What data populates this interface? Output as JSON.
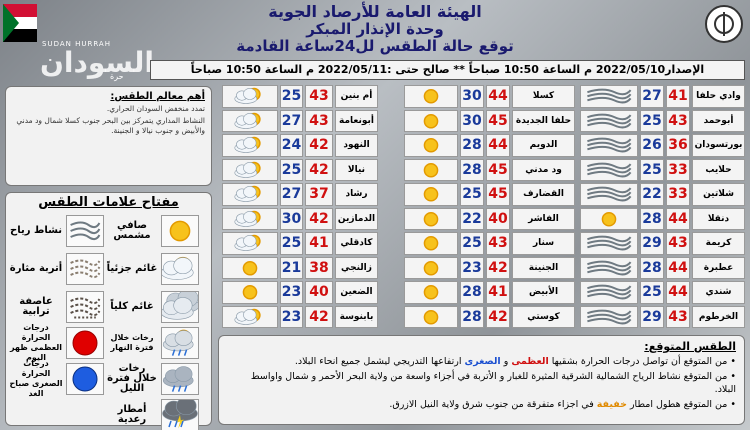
{
  "header": {
    "title": "الهيئة العامة للأرصاد الجوية",
    "subtitle": "وحدة الإنذار المبكر",
    "forecast_title": "توقع حالة الطقس لل24ساعة القادمة"
  },
  "watermark": {
    "latin": "SUDAN HURRAH",
    "arabic": "السودان",
    "small": "حرة"
  },
  "issue_line": "الإصدار2022/05/10 م الساعة 10:50 صباحاً ** صالح حتى :2022/05/11 م الساعة 10:50 صباحاً",
  "cities": {
    "columns": [
      [
        {
          "name": "وادي حلفا",
          "max": "41",
          "min": "27",
          "icon": "wind"
        },
        {
          "name": "أبوحمد",
          "max": "43",
          "min": "25",
          "icon": "wind"
        },
        {
          "name": "بورتسودان",
          "max": "36",
          "min": "26",
          "icon": "wind"
        },
        {
          "name": "حلايب",
          "max": "33",
          "min": "25",
          "icon": "wind"
        },
        {
          "name": "شلاتين",
          "max": "33",
          "min": "22",
          "icon": "wind"
        },
        {
          "name": "دنقلا",
          "max": "44",
          "min": "28",
          "icon": "sun"
        },
        {
          "name": "كريمة",
          "max": "43",
          "min": "29",
          "icon": "wind"
        },
        {
          "name": "عطبرة",
          "max": "44",
          "min": "28",
          "icon": "wind"
        },
        {
          "name": "شندي",
          "max": "44",
          "min": "25",
          "icon": "wind"
        },
        {
          "name": "الخرطوم",
          "max": "43",
          "min": "29",
          "icon": "wind"
        }
      ],
      [
        {
          "name": "كسلا",
          "max": "44",
          "min": "30",
          "icon": "sun"
        },
        {
          "name": "حلفا الجديدة",
          "max": "45",
          "min": "30",
          "icon": "sun"
        },
        {
          "name": "الدويم",
          "max": "44",
          "min": "28",
          "icon": "sun"
        },
        {
          "name": "ود مدني",
          "max": "45",
          "min": "28",
          "icon": "sun"
        },
        {
          "name": "القضارف",
          "max": "45",
          "min": "25",
          "icon": "sun"
        },
        {
          "name": "الفاشر",
          "max": "40",
          "min": "22",
          "icon": "sun"
        },
        {
          "name": "سنار",
          "max": "43",
          "min": "25",
          "icon": "sun"
        },
        {
          "name": "الجنينة",
          "max": "42",
          "min": "23",
          "icon": "sun"
        },
        {
          "name": "الأبيض",
          "max": "41",
          "min": "28",
          "icon": "sun"
        },
        {
          "name": "كوستي",
          "max": "42",
          "min": "28",
          "icon": "sun"
        }
      ],
      [
        {
          "name": "أم بنين",
          "max": "43",
          "min": "25",
          "icon": "partly"
        },
        {
          "name": "أبونعامة",
          "max": "43",
          "min": "27",
          "icon": "partly"
        },
        {
          "name": "النهود",
          "max": "42",
          "min": "24",
          "icon": "partly"
        },
        {
          "name": "نيالا",
          "max": "42",
          "min": "25",
          "icon": "partly"
        },
        {
          "name": "رشاد",
          "max": "37",
          "min": "27",
          "icon": "partly"
        },
        {
          "name": "الدمازين",
          "max": "42",
          "min": "30",
          "icon": "partly"
        },
        {
          "name": "كادقلي",
          "max": "41",
          "min": "25",
          "icon": "partly"
        },
        {
          "name": "زالنجي",
          "max": "38",
          "min": "21",
          "icon": "sun"
        },
        {
          "name": "الضعين",
          "max": "40",
          "min": "23",
          "icon": "sun"
        },
        {
          "name": "بابنوسة",
          "max": "42",
          "min": "23",
          "icon": "partly"
        }
      ]
    ]
  },
  "highlights": {
    "title": "أهم معالم الطقس:",
    "items": [
      "تمدد منخفض السودان الحراري.",
      "النشاط المداري يتمركز بين البحر جنوب كسلا شمال ود مدني والأبيض و جنوب نيالا و الجنينة."
    ]
  },
  "legend": {
    "title": "مفتاح علامات الطقس",
    "items": [
      {
        "label": "صافي مشمس",
        "icon": "sun"
      },
      {
        "label": "نشاط رياح",
        "icon": "wind"
      },
      {
        "label": "غائم جزئياً",
        "icon": "partly"
      },
      {
        "label": "أتربة مثارة",
        "icon": "dust"
      },
      {
        "label": "غائم كلياً",
        "icon": "cloudy"
      },
      {
        "label": "عاصفة ترابية",
        "icon": "duststorm"
      },
      {
        "label": "رخات خلال فترة النهار",
        "icon": "showers_day"
      },
      {
        "label": "درجات الحرارة العظمى ظهر اليوم",
        "icon": "red_dot"
      },
      {
        "label": "رخات خلال فترة الليل",
        "icon": "showers_night"
      },
      {
        "label": "درجات الحرارة الصغرى صباح الغد",
        "icon": "blue_dot"
      },
      {
        "label": "أمطار رعدية",
        "icon": "storm"
      }
    ]
  },
  "expected": {
    "title": "الطقس المتوقع:",
    "bullets": [
      [
        "من المتوقع أن تواصل درجات الحرارة بشقيها ",
        {
          "text": "العظمى",
          "color": "#d01010"
        },
        " و ",
        {
          "text": "الصغرى",
          "color": "#1a4fd0"
        },
        " ارتفاعها التدريجي ليشمل جميع انحاء البلاد."
      ],
      [
        "من المتوقع نشاط الرياح الشمالية الشرقية المثيرة للغبار و الأتربة في أجزاء واسعة من ولاية البحر الأحمر و شمال واواسط البلاد."
      ],
      [
        "من المتوقع هطول امطار ",
        {
          "text": "خفيفة",
          "color": "#e08a00"
        },
        " في اجزاء متفرقة من جنوب شرق ولاية النيل الازرق."
      ]
    ]
  }
}
